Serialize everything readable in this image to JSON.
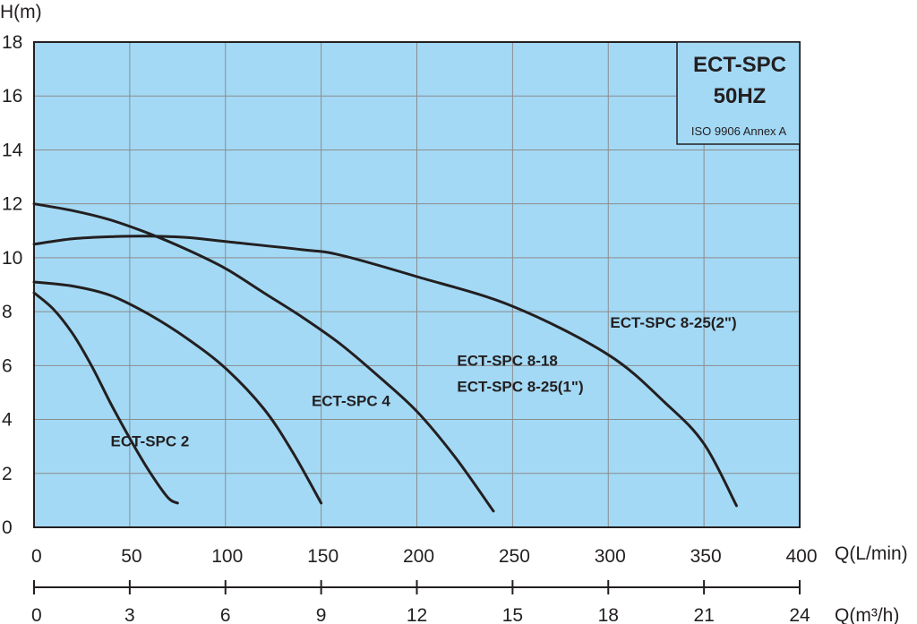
{
  "chart_data": {
    "type": "line",
    "title_box": {
      "model": "ECT-SPC",
      "frequency": "50HZ",
      "standard": "ISO 9906 Annex A"
    },
    "ylabel": "H(m)",
    "xlabel": "Q(L/min)",
    "x2label": "Q(m³/h)",
    "xlim": [
      0,
      400
    ],
    "ylim": [
      0,
      18
    ],
    "x_ticks": [
      0,
      50,
      100,
      150,
      200,
      250,
      300,
      350,
      400
    ],
    "x_tick_labels": [
      "0",
      "50",
      "100",
      "150",
      "200",
      "250",
      "300",
      "350",
      "400"
    ],
    "y_ticks": [
      0,
      2,
      4,
      6,
      8,
      10,
      12,
      14,
      16,
      18
    ],
    "y_tick_labels": [
      "0",
      "2",
      "4",
      "6",
      "8",
      "10",
      "12",
      "14",
      "16",
      "18"
    ],
    "x2_ticks": [
      0,
      3,
      6,
      9,
      12,
      15,
      18,
      21,
      24
    ],
    "x2_tick_labels": [
      "0",
      "3",
      "6",
      "9",
      "12",
      "15",
      "18",
      "21",
      "24"
    ],
    "grid": true,
    "colors": {
      "plot_background": "#a3d9f5",
      "grid": "#8c8c8c",
      "curve": "#231f20",
      "frame": "#231f20"
    },
    "series": [
      {
        "name": "ECT-SPC 2",
        "label_at": [
          40,
          3.0
        ],
        "points": [
          [
            0,
            8.7
          ],
          [
            10,
            8.1
          ],
          [
            20,
            7.2
          ],
          [
            30,
            6.0
          ],
          [
            40,
            4.6
          ],
          [
            50,
            3.3
          ],
          [
            60,
            2.1
          ],
          [
            70,
            1.1
          ],
          [
            75,
            0.9
          ]
        ]
      },
      {
        "name": "ECT-SPC 4",
        "label_at": [
          145,
          4.5
        ],
        "points": [
          [
            0,
            9.1
          ],
          [
            20,
            8.95
          ],
          [
            40,
            8.6
          ],
          [
            60,
            7.9
          ],
          [
            80,
            7.0
          ],
          [
            100,
            5.9
          ],
          [
            120,
            4.4
          ],
          [
            135,
            2.8
          ],
          [
            150,
            0.9
          ]
        ]
      },
      {
        "name": "ECT-SPC 8-18\nECT-SPC 8-25(1\")",
        "label_at": [
          221,
          6.0
        ],
        "points": [
          [
            0,
            12.0
          ],
          [
            20,
            11.75
          ],
          [
            40,
            11.4
          ],
          [
            60,
            10.9
          ],
          [
            80,
            10.3
          ],
          [
            100,
            9.6
          ],
          [
            120,
            8.7
          ],
          [
            140,
            7.8
          ],
          [
            160,
            6.8
          ],
          [
            180,
            5.6
          ],
          [
            200,
            4.3
          ],
          [
            220,
            2.6
          ],
          [
            240,
            0.6
          ]
        ]
      },
      {
        "name": "ECT-SPC 8-25(2\")",
        "label_at": [
          301,
          7.4
        ],
        "points": [
          [
            0,
            10.5
          ],
          [
            20,
            10.7
          ],
          [
            40,
            10.78
          ],
          [
            60,
            10.8
          ],
          [
            80,
            10.75
          ],
          [
            100,
            10.6
          ],
          [
            140,
            10.3
          ],
          [
            160,
            10.1
          ],
          [
            200,
            9.3
          ],
          [
            250,
            8.2
          ],
          [
            300,
            6.4
          ],
          [
            330,
            4.6
          ],
          [
            350,
            3.1
          ],
          [
            367,
            0.8
          ]
        ]
      }
    ]
  }
}
